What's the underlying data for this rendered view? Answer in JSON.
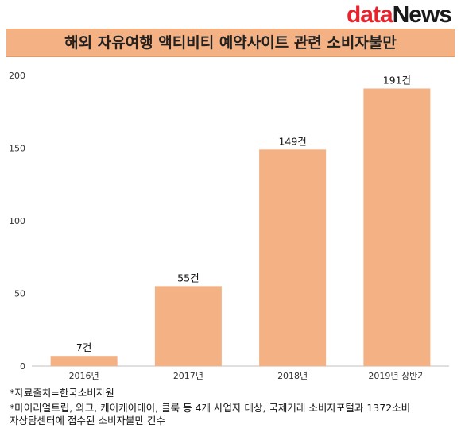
{
  "logo": {
    "part1": "data",
    "part2": "News"
  },
  "title": "해외 자유여행 액티비티 예약사이트 관련 소비자불만",
  "chart_data": {
    "type": "bar",
    "categories": [
      "2016년",
      "2017년",
      "2018년",
      "2019년 상반기"
    ],
    "values": [
      7,
      55,
      149,
      191
    ],
    "data_labels": [
      "7건",
      "55건",
      "149건",
      "191건"
    ],
    "ylim": [
      0,
      200
    ],
    "yticks": [
      0,
      50,
      100,
      150,
      200
    ],
    "bar_color": "#f4b183",
    "grid": false,
    "legend": "none"
  },
  "notes": {
    "source": "*자료출처=한국소비자원",
    "line2": "*마이리얼트립, 와그, 케이케이데이, 클룩 등 4개 사업자 대상, 국제거래 소비자포털과 1372소비",
    "line3": "자상담센터에 접수된 소비자불만 건수"
  }
}
